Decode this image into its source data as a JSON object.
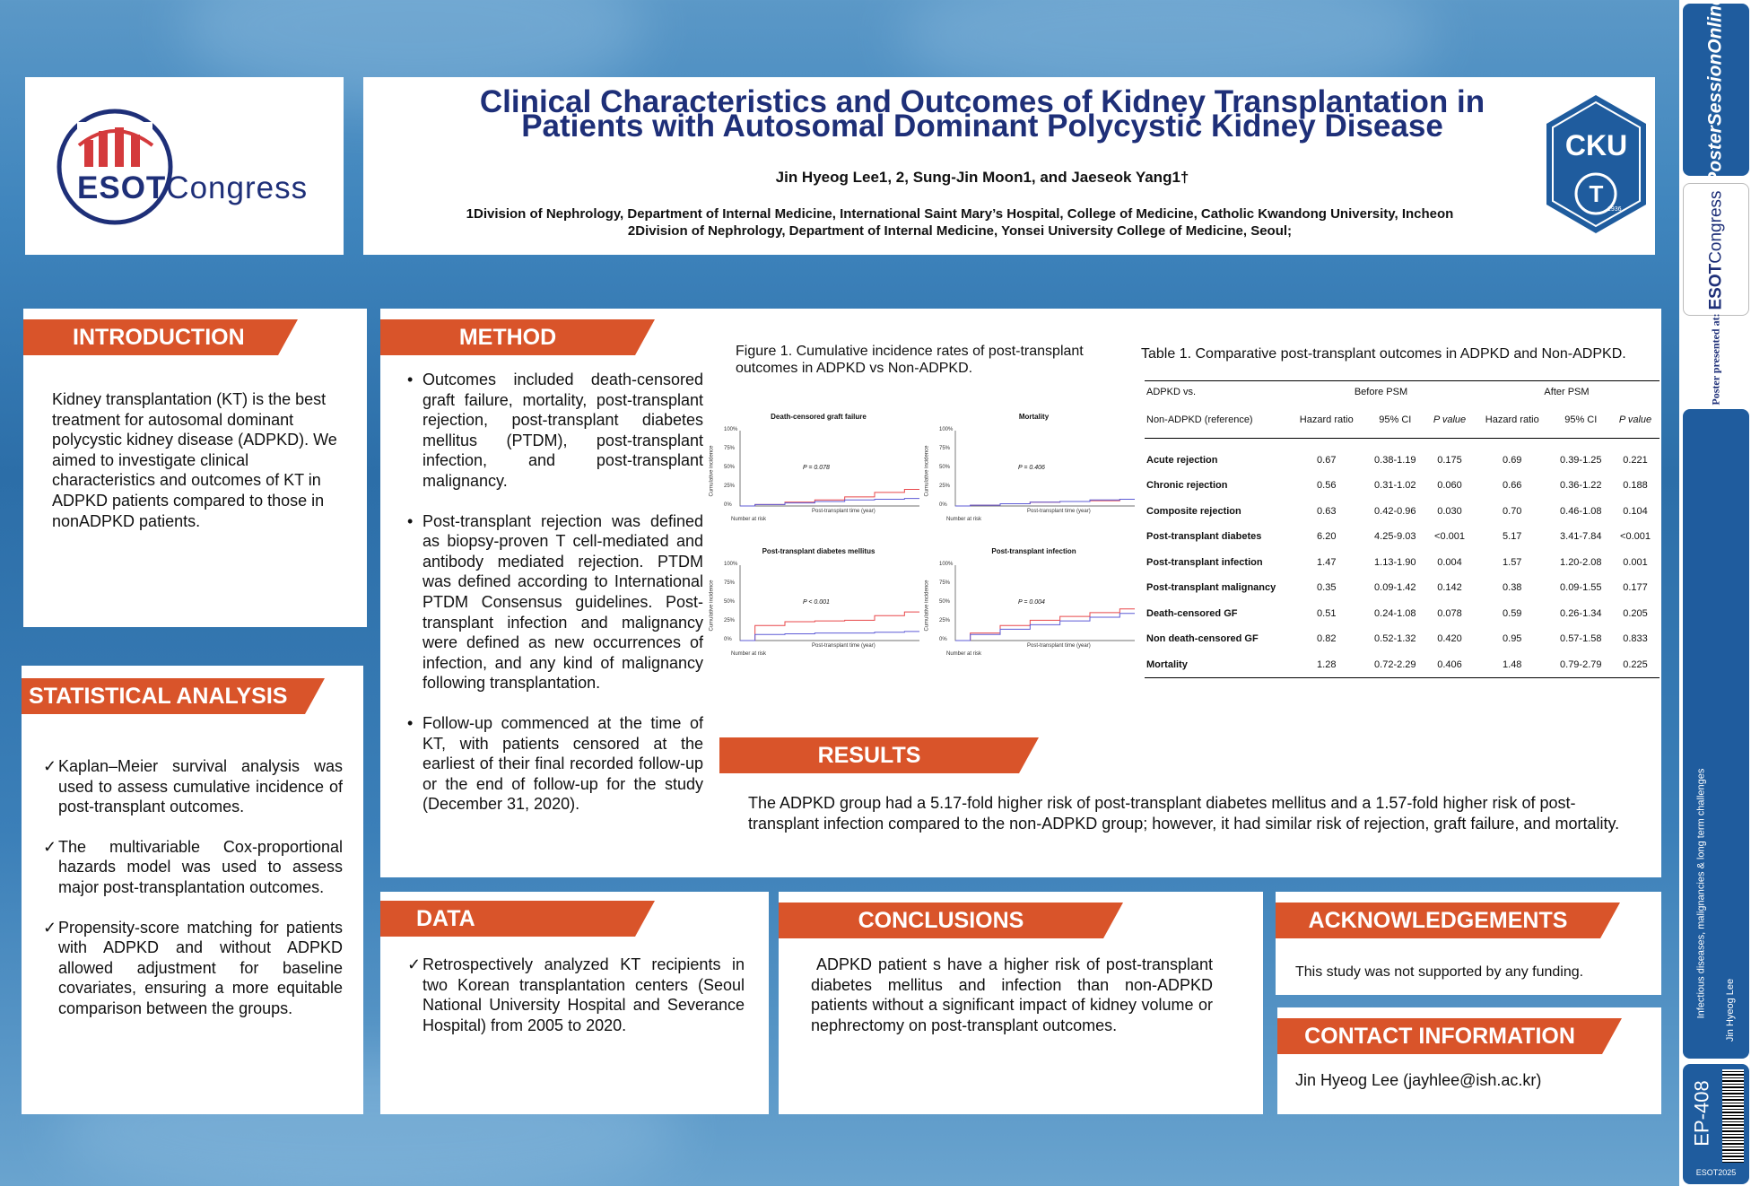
{
  "poster": {
    "title_line1": "Clinical Characteristics and Outcomes of Kidney Transplantation in",
    "title_line2": "Patients with Autosomal Dominant Polycystic Kidney Disease",
    "authors": "Jin Hyeog Lee1, 2, Sung-Jin Moon1, and Jaeseok Yang1†",
    "affiliation1": "1Division of Nephrology, Department of Internal Medicine, International Saint Mary’s Hospital, College of Medicine, Catholic Kwandong University, Incheon",
    "affiliation2": "2Division of Nephrology, Department of Internal Medicine, Yonsei University College of Medicine, Seoul;"
  },
  "logos": {
    "esot_brand": "ESOT",
    "esot_word": "Congress",
    "cku_text": "CKU",
    "cku_letter": "T",
    "cku_small": "1936"
  },
  "introduction": {
    "heading": "INTRODUCTION",
    "text": "Kidney transplantation (KT) is the best treatment for autosomal dominant polycystic kidney disease (ADPKD). We aimed to investigate clinical characteristics and outcomes of KT in ADPKD patients compared to those in nonADPKD patients."
  },
  "statistical_analysis": {
    "heading": "STATISTICAL ANALYSIS",
    "items": [
      "Kaplan–Meier survival analysis was used to assess cumulative incidence of post-transplant outcomes.",
      "The multivariable Cox-proportional hazards model was used to assess major post-transplantation outcomes.",
      "Propensity-score matching for patients with ADPKD and without ADPKD allowed adjustment for baseline covariates, ensuring a more equitable comparison between the groups."
    ]
  },
  "method": {
    "heading": "METHOD",
    "items": [
      "Outcomes included death-censored graft failure, mortality, post-transplant rejection, post-transplant diabetes mellitus (PTDM), post-transplant infection, and post-transplant malignancy.",
      "Post-transplant rejection was defined as biopsy-proven T cell-mediated and antibody mediated rejection. PTDM was defined according to International PTDM Consensus guidelines. Post-transplant infection and malignancy were defined as new occurrences of infection, and any kind of malignancy following transplantation.",
      "Follow-up commenced at the time of KT, with patients censored at the earliest of their final recorded follow-up or the end of follow-up for the study (December 31, 2020)."
    ]
  },
  "figure": {
    "caption": "Figure 1. Cumulative incidence rates of post-transplant outcomes in ADPKD vs Non-ADPKD.",
    "ylabel": "Cumulative incidence",
    "xlabel": "Post-transplant time (year)",
    "number_at_risk": "Number at risk",
    "row_labels": [
      "Non-ADPKD",
      "ADPKD"
    ],
    "yticks": [
      "100%",
      "75%",
      "50%",
      "25%",
      "0%"
    ],
    "panels": [
      {
        "title": "Death-censored graft failure",
        "p": "P = 0.078"
      },
      {
        "title": "Mortality",
        "p": "P = 0.406"
      },
      {
        "title": "Post-transplant diabetes mellitus",
        "p": "P < 0.001"
      },
      {
        "title": "Post-transplant infection",
        "p": "P = 0.004"
      }
    ],
    "colors": {
      "adpkd": "#e8474a",
      "non_adpkd": "#5d5bd6"
    }
  },
  "table": {
    "caption": "Table 1. Comparative post-transplant outcomes in ADPKD and Non-ADPKD.",
    "header_row1": [
      "ADPKD vs.",
      "Before PSM",
      "After PSM"
    ],
    "header_row2": [
      "Non-ADPKD (reference)",
      "Hazard ratio",
      "95% CI",
      "P value",
      "Hazard ratio",
      "95% CI",
      "P value"
    ],
    "rows": [
      [
        "Acute rejection",
        "0.67",
        "0.38-1.19",
        "0.175",
        "0.69",
        "0.39-1.25",
        "0.221"
      ],
      [
        "Chronic rejection",
        "0.56",
        "0.31-1.02",
        "0.060",
        "0.66",
        "0.36-1.22",
        "0.188"
      ],
      [
        "Composite rejection",
        "0.63",
        "0.42-0.96",
        "0.030",
        "0.70",
        "0.46-1.08",
        "0.104"
      ],
      [
        "Post-transplant diabetes",
        "6.20",
        "4.25-9.03",
        "<0.001",
        "5.17",
        "3.41-7.84",
        "<0.001"
      ],
      [
        "Post-transplant infection",
        "1.47",
        "1.13-1.90",
        "0.004",
        "1.57",
        "1.20-2.08",
        "0.001"
      ],
      [
        "Post-transplant malignancy",
        "0.35",
        "0.09-1.42",
        "0.142",
        "0.38",
        "0.09-1.55",
        "0.177"
      ],
      [
        "Death-censored GF",
        "0.51",
        "0.24-1.08",
        "0.078",
        "0.59",
        "0.26-1.34",
        "0.205"
      ],
      [
        "Non death-censored GF",
        "0.82",
        "0.52-1.32",
        "0.420",
        "0.95",
        "0.57-1.58",
        "0.833"
      ],
      [
        "Mortality",
        "1.28",
        "0.72-2.29",
        "0.406",
        "1.48",
        "0.79-2.79",
        "0.225"
      ]
    ]
  },
  "results": {
    "heading": "RESULTS",
    "text": "The ADPKD group had a 5.17-fold higher risk of post-transplant diabetes mellitus and a 1.57-fold higher risk of post-transplant infection compared to the non-ADPKD group; however, it had similar risk of rejection, graft failure, and mortality."
  },
  "data": {
    "heading": "DATA",
    "text": "Retrospectively analyzed KT recipients in two Korean transplantation centers (Seoul National University Hospital and Severance Hospital) from 2005 to 2020."
  },
  "conclusions": {
    "heading": "CONCLUSIONS",
    "text": "ADPKD patient s have a higher risk of post-transplant diabetes mellitus and infection than non-ADPKD patients without a significant impact of kidney volume or nephrectomy on post-transplant outcomes."
  },
  "acknowledgements": {
    "heading": "ACKNOWLEDGEMENTS",
    "text": "This study was not supported by any funding."
  },
  "contact": {
    "heading": "CONTACT INFORMATION",
    "text": "Jin Hyeog Lee (jayhlee@ish.ac.kr)"
  },
  "sidebar": {
    "brand": "PosterSessionOnline",
    "presented_at": "Poster presented at:",
    "esot_brand": "ESOT",
    "esot_word": "Congress",
    "topic": "Infectious diseases, malignancies & long term challenges",
    "author": "Jin Hyeog Lee",
    "poster_id": "EP-408",
    "event": "ESOT2025"
  }
}
